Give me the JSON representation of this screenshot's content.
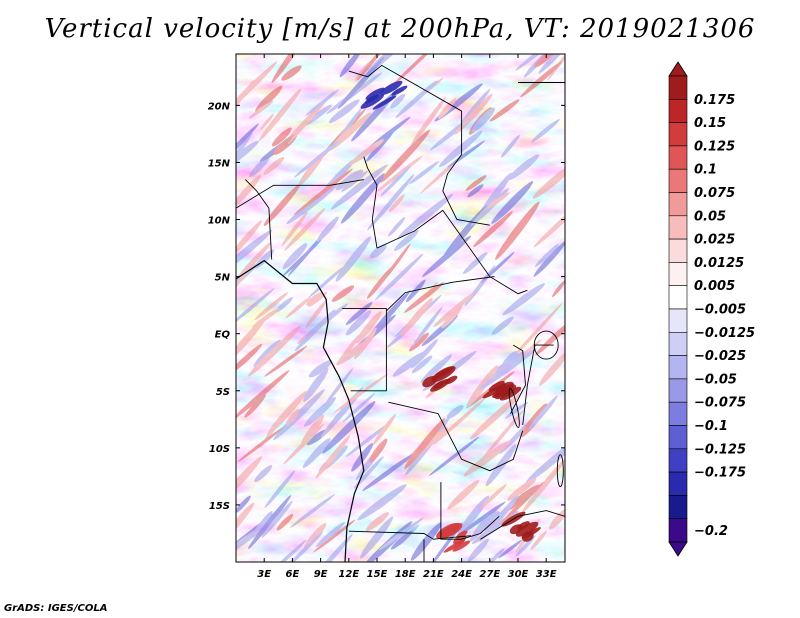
{
  "chart_data": {
    "type": "heatmap",
    "title": "Vertical velocity [m/s] at 200hPa, VT: 2019021306",
    "variable": "Vertical velocity",
    "units": "m/s",
    "level": "200hPa",
    "valid_time": "2019021306",
    "x_range_deg": [
      0,
      35
    ],
    "y_range_deg": [
      -20,
      24.5
    ],
    "x_ticks": [
      {
        "value": 3,
        "label": "3E"
      },
      {
        "value": 6,
        "label": "6E"
      },
      {
        "value": 9,
        "label": "9E"
      },
      {
        "value": 12,
        "label": "12E"
      },
      {
        "value": 15,
        "label": "15E"
      },
      {
        "value": 18,
        "label": "18E"
      },
      {
        "value": 21,
        "label": "21E"
      },
      {
        "value": 24,
        "label": "24E"
      },
      {
        "value": 27,
        "label": "27E"
      },
      {
        "value": 30,
        "label": "30E"
      },
      {
        "value": 33,
        "label": "33E"
      }
    ],
    "y_ticks": [
      {
        "value": 20,
        "label": "20N"
      },
      {
        "value": 15,
        "label": "15N"
      },
      {
        "value": 10,
        "label": "10N"
      },
      {
        "value": 5,
        "label": "5N"
      },
      {
        "value": 0,
        "label": "EQ"
      },
      {
        "value": -5,
        "label": "5S"
      },
      {
        "value": -10,
        "label": "10S"
      },
      {
        "value": -15,
        "label": "15S"
      }
    ],
    "colorbar": {
      "levels": [
        {
          "value": 0.175,
          "label": "0.175"
        },
        {
          "value": 0.15,
          "label": "0.15"
        },
        {
          "value": 0.125,
          "label": "0.125"
        },
        {
          "value": 0.1,
          "label": "0.1"
        },
        {
          "value": 0.075,
          "label": "0.075"
        },
        {
          "value": 0.05,
          "label": "0.05"
        },
        {
          "value": 0.025,
          "label": "0.025"
        },
        {
          "value": 0.0125,
          "label": "0.0125"
        },
        {
          "value": 0.005,
          "label": "0.005"
        },
        {
          "value": -0.005,
          "label": "−0.005"
        },
        {
          "value": -0.0125,
          "label": "−0.0125"
        },
        {
          "value": -0.025,
          "label": "−0.025"
        },
        {
          "value": -0.05,
          "label": "−0.05"
        },
        {
          "value": -0.075,
          "label": "−0.075"
        },
        {
          "value": -0.1,
          "label": "−0.1"
        },
        {
          "value": -0.125,
          "label": "−0.125"
        },
        {
          "value": -0.175,
          "label": "−0.175"
        },
        {
          "value": -0.2,
          "label": "−0.2"
        }
      ],
      "colors": [
        "#a01c1c",
        "#bd2626",
        "#d13c3c",
        "#e05656",
        "#ea7878",
        "#f19a9a",
        "#f7bcbc",
        "#fbdcdc",
        "#fdf0f0",
        "#ffffff",
        "#e6e6fa",
        "#cfcff5",
        "#b4b4f0",
        "#9999e8",
        "#7d7de0",
        "#5f5fd4",
        "#4040c4",
        "#2a2aae",
        "#1a1a8f",
        "#3a0a8a"
      ]
    },
    "features": [
      {
        "type": "strong_ascent",
        "lon": 22,
        "lat": -4,
        "value": 0.15
      },
      {
        "type": "strong_ascent",
        "lon": 28,
        "lat": -5,
        "value": 0.175
      },
      {
        "type": "strong_ascent",
        "lon": 30,
        "lat": -17,
        "value": 0.15
      },
      {
        "type": "strong_ascent",
        "lon": 24,
        "lat": -18,
        "value": 0.125
      },
      {
        "type": "strong_descent",
        "lon": 16,
        "lat": 21,
        "value": -0.125
      }
    ]
  },
  "footer": "GrADS: IGES/COLA"
}
